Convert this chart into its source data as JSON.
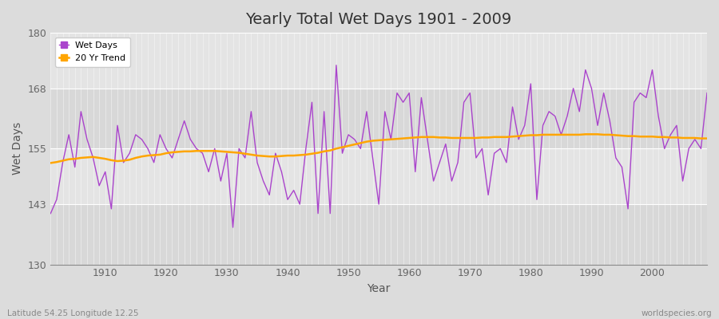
{
  "title": "Yearly Total Wet Days 1901 - 2009",
  "xlabel": "Year",
  "ylabel": "Wet Days",
  "lat_lon_label": "Latitude 54.25 Longitude 12.25",
  "watermark": "worldspecies.org",
  "ylim": [
    130,
    180
  ],
  "xlim": [
    1901,
    2009
  ],
  "yticks": [
    130,
    143,
    155,
    168,
    180
  ],
  "xticks": [
    1910,
    1920,
    1930,
    1940,
    1950,
    1960,
    1970,
    1980,
    1990,
    2000
  ],
  "wet_days_color": "#AA44CC",
  "trend_color": "#FFA500",
  "band_colors": [
    "#D8D8D8",
    "#E4E4E4"
  ],
  "grid_line_color": "#FFFFFF",
  "years": [
    1901,
    1902,
    1903,
    1904,
    1905,
    1906,
    1907,
    1908,
    1909,
    1910,
    1911,
    1912,
    1913,
    1914,
    1915,
    1916,
    1917,
    1918,
    1919,
    1920,
    1921,
    1922,
    1923,
    1924,
    1925,
    1926,
    1927,
    1928,
    1929,
    1930,
    1931,
    1932,
    1933,
    1934,
    1935,
    1936,
    1937,
    1938,
    1939,
    1940,
    1941,
    1942,
    1943,
    1944,
    1945,
    1946,
    1947,
    1948,
    1949,
    1950,
    1951,
    1952,
    1953,
    1954,
    1955,
    1956,
    1957,
    1958,
    1959,
    1960,
    1961,
    1962,
    1963,
    1964,
    1965,
    1966,
    1967,
    1968,
    1969,
    1970,
    1971,
    1972,
    1973,
    1974,
    1975,
    1976,
    1977,
    1978,
    1979,
    1980,
    1981,
    1982,
    1983,
    1984,
    1985,
    1986,
    1987,
    1988,
    1989,
    1990,
    1991,
    1992,
    1993,
    1994,
    1995,
    1996,
    1997,
    1998,
    1999,
    2000,
    2001,
    2002,
    2003,
    2004,
    2005,
    2006,
    2007,
    2008,
    2009
  ],
  "wet_days": [
    141,
    144,
    152,
    158,
    151,
    163,
    157,
    153,
    147,
    150,
    142,
    160,
    152,
    154,
    158,
    157,
    155,
    152,
    158,
    155,
    153,
    157,
    161,
    157,
    155,
    154,
    150,
    155,
    148,
    154,
    138,
    155,
    153,
    163,
    152,
    148,
    145,
    154,
    150,
    144,
    146,
    143,
    155,
    165,
    141,
    163,
    141,
    173,
    154,
    158,
    157,
    155,
    163,
    153,
    143,
    163,
    157,
    167,
    165,
    167,
    150,
    166,
    157,
    148,
    152,
    156,
    148,
    152,
    165,
    167,
    153,
    155,
    145,
    154,
    155,
    152,
    164,
    157,
    160,
    169,
    144,
    160,
    163,
    162,
    158,
    162,
    168,
    163,
    172,
    168,
    160,
    167,
    161,
    153,
    151,
    142,
    165,
    167,
    166,
    172,
    162,
    155,
    158,
    160,
    148,
    155,
    157,
    155,
    167
  ],
  "trend": [
    151.9,
    152.1,
    152.4,
    152.7,
    152.8,
    153.0,
    153.1,
    153.2,
    153.0,
    152.8,
    152.5,
    152.3,
    152.4,
    152.6,
    153.0,
    153.3,
    153.5,
    153.6,
    153.7,
    154.0,
    154.2,
    154.3,
    154.4,
    154.4,
    154.5,
    154.5,
    154.5,
    154.5,
    154.4,
    154.3,
    154.2,
    154.1,
    153.9,
    153.7,
    153.5,
    153.4,
    153.3,
    153.3,
    153.4,
    153.5,
    153.5,
    153.6,
    153.7,
    153.9,
    154.1,
    154.4,
    154.6,
    155.0,
    155.3,
    155.6,
    155.9,
    156.2,
    156.5,
    156.7,
    156.8,
    156.9,
    157.0,
    157.1,
    157.2,
    157.3,
    157.4,
    157.5,
    157.5,
    157.5,
    157.4,
    157.4,
    157.3,
    157.3,
    157.3,
    157.3,
    157.3,
    157.4,
    157.4,
    157.5,
    157.5,
    157.5,
    157.6,
    157.7,
    157.8,
    157.9,
    157.9,
    158.0,
    158.0,
    158.0,
    158.0,
    158.0,
    158.0,
    158.0,
    158.1,
    158.1,
    158.1,
    158.0,
    158.0,
    157.9,
    157.8,
    157.7,
    157.7,
    157.6,
    157.6,
    157.6,
    157.5,
    157.5,
    157.4,
    157.4,
    157.3,
    157.3,
    157.3,
    157.2,
    157.2
  ]
}
